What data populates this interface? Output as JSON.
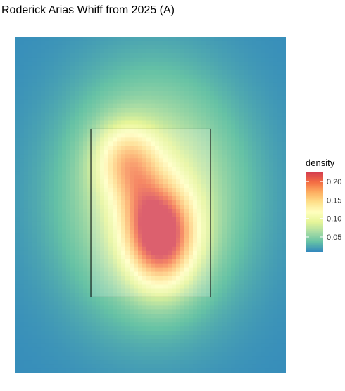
{
  "chart_data": {
    "type": "heatmap",
    "title": "Roderick Arias Whiff from 2025 (A)",
    "xlabel": "",
    "ylabel": "",
    "grid": false,
    "legend": {
      "title": "density",
      "placement": "right",
      "ticks": [
        0.05,
        0.1,
        0.15,
        0.2
      ],
      "tick_labels": [
        "0.05",
        "0.10",
        "0.15",
        "0.20"
      ],
      "range": [
        0.01,
        0.225
      ]
    },
    "colors": [
      "#3288bd",
      "#66c2a5",
      "#abdda4",
      "#e6f598",
      "#ffffbf",
      "#fee08b",
      "#fdae61",
      "#f46d43",
      "#d53e4f"
    ],
    "overlay": "strike-zone",
    "density_components": [
      {
        "name": "main",
        "cx": 0.12,
        "cy": 2.22,
        "sx": 0.28,
        "sy": 0.4,
        "w": 0.175
      },
      {
        "name": "upper",
        "cx": -0.28,
        "cy": 3.12,
        "sx": 0.25,
        "sy": 0.3,
        "w": 0.085
      },
      {
        "name": "middle",
        "cx": -0.12,
        "cy": 2.65,
        "sx": 0.2,
        "sy": 0.3,
        "w": 0.03
      },
      {
        "name": "halo",
        "cx": 0.02,
        "cy": 2.7,
        "sx": 0.72,
        "sy": 0.95,
        "w": 0.085
      }
    ]
  }
}
